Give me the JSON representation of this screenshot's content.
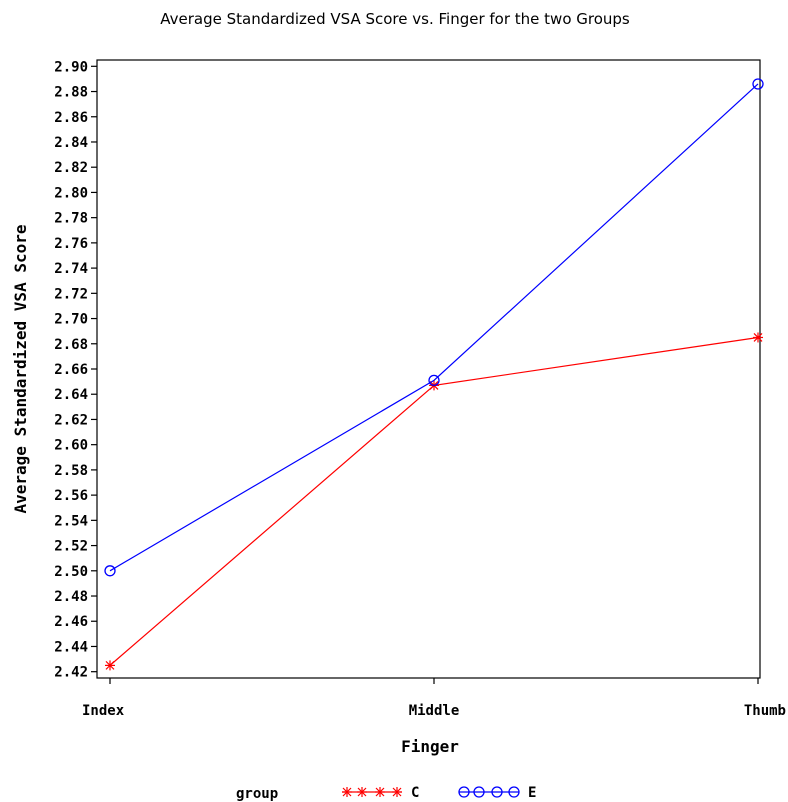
{
  "chart_data": {
    "type": "line",
    "title": "Average Standardized VSA Score vs. Finger for the two Groups",
    "xlabel": "Finger",
    "ylabel": "Average Standardized VSA Score",
    "categories": [
      "Index",
      "Middle",
      "Thumb"
    ],
    "ylim": [
      2.415,
      2.905
    ],
    "yticks": [
      "2.42",
      "2.44",
      "2.46",
      "2.48",
      "2.50",
      "2.52",
      "2.54",
      "2.56",
      "2.58",
      "2.60",
      "2.62",
      "2.64",
      "2.66",
      "2.68",
      "2.70",
      "2.72",
      "2.74",
      "2.76",
      "2.78",
      "2.80",
      "2.82",
      "2.84",
      "2.86",
      "2.88",
      "2.90"
    ],
    "grid": false,
    "legend": {
      "title": "group",
      "placement": "bottom"
    },
    "series": [
      {
        "name": "C",
        "values": [
          2.425,
          2.647,
          2.685
        ],
        "color": "#ff0000",
        "marker": "star"
      },
      {
        "name": "E",
        "values": [
          2.5,
          2.651,
          2.886
        ],
        "color": "#0000ff",
        "marker": "circle"
      }
    ]
  }
}
